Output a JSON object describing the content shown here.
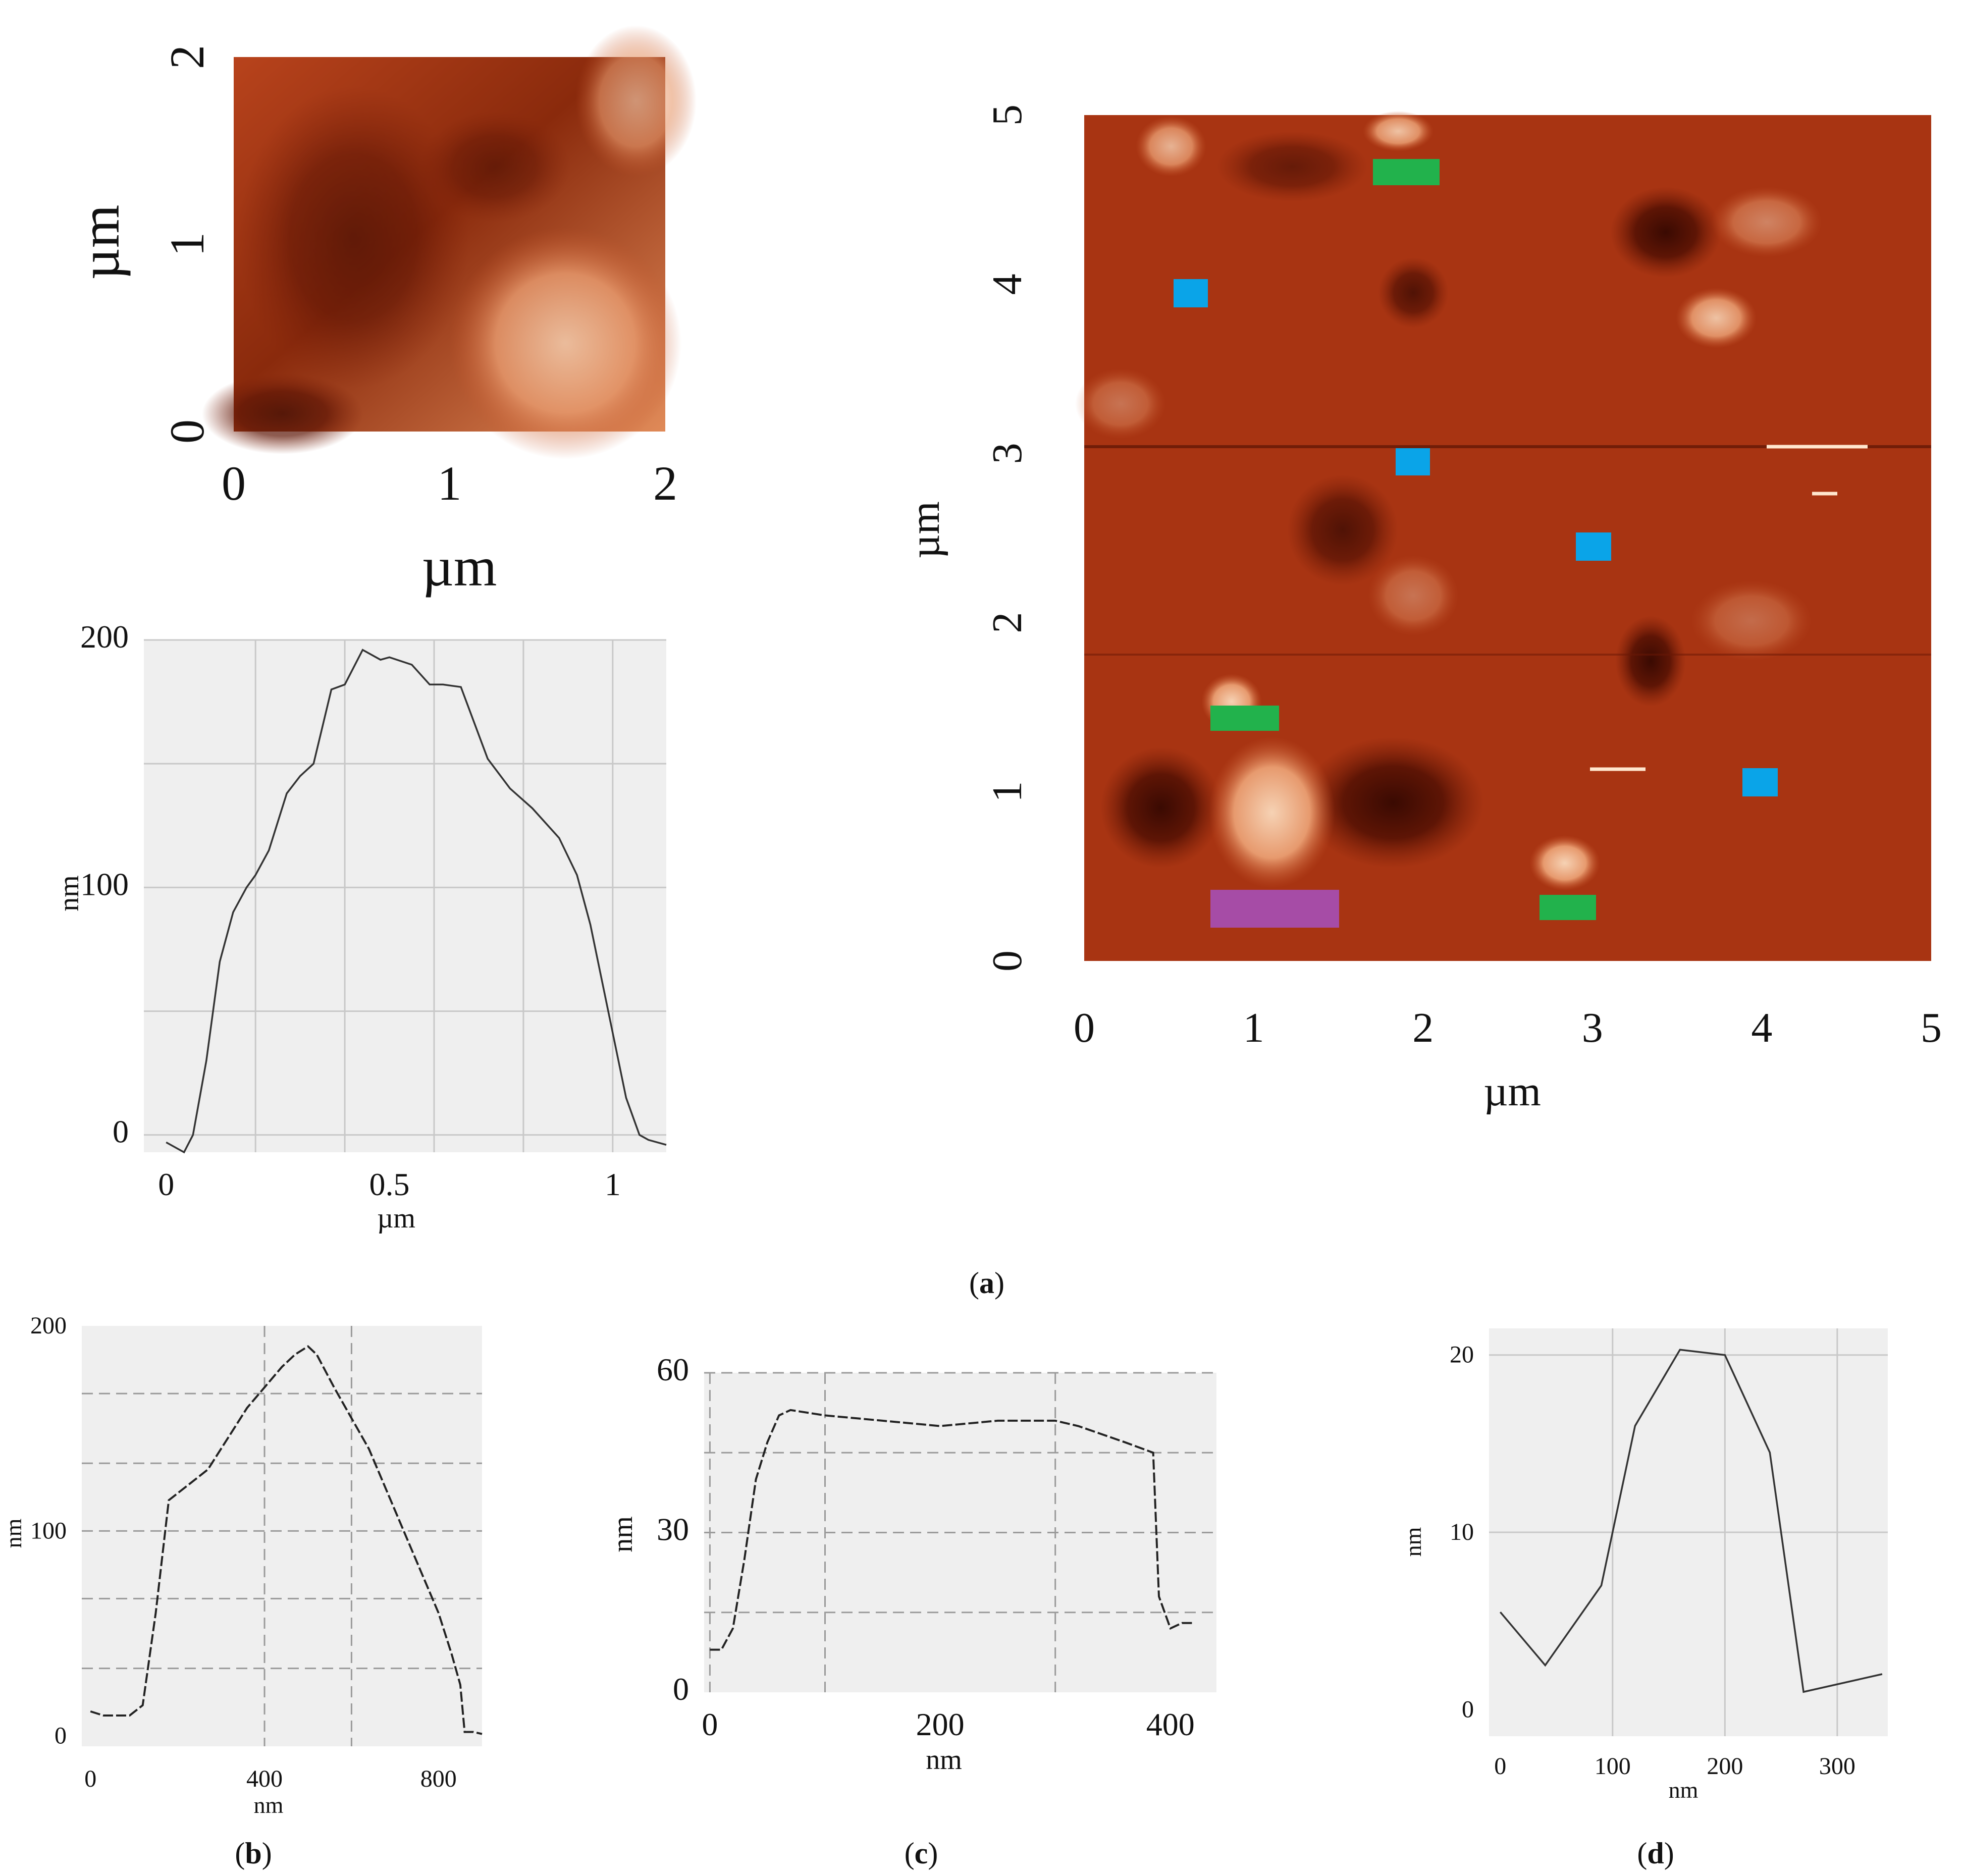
{
  "panel_labels": {
    "a": {
      "open": "(",
      "letter": "a",
      "close": ")"
    },
    "b": {
      "open": "(",
      "letter": "b",
      "close": ")"
    },
    "c": {
      "open": "(",
      "letter": "c",
      "close": ")"
    },
    "d": {
      "open": "(",
      "letter": "d",
      "close": ")"
    }
  },
  "colors": {
    "afm_dark": "#3a0a02",
    "afm_mid": "#a83412",
    "afm_light": "#f2c7a6",
    "marker_blue": "#0aa4e8",
    "marker_green": "#22b24c",
    "marker_purple": "#a64ca6"
  },
  "chart_data": [
    {
      "id": "afm-small",
      "type": "heatmap",
      "xlabel": "µm",
      "ylabel": "µm",
      "xlim": [
        0,
        2
      ],
      "ylim": [
        0,
        2
      ],
      "x_ticks": [
        "0",
        "1",
        "2"
      ],
      "y_ticks": [
        "0",
        "1",
        "2"
      ]
    },
    {
      "id": "profile-a",
      "type": "line",
      "xlabel": "µm",
      "ylabel": "nm",
      "xlim": [
        -0.05,
        1.12
      ],
      "ylim": [
        -7,
        200
      ],
      "x_ticks": [
        "0",
        "0.5",
        "1"
      ],
      "y_ticks": [
        "0",
        "100",
        "200"
      ],
      "x": [
        0.0,
        0.04,
        0.06,
        0.09,
        0.12,
        0.15,
        0.18,
        0.2,
        0.23,
        0.27,
        0.3,
        0.33,
        0.37,
        0.4,
        0.44,
        0.48,
        0.5,
        0.55,
        0.59,
        0.62,
        0.66,
        0.72,
        0.77,
        0.82,
        0.88,
        0.92,
        0.95,
        0.99,
        1.03,
        1.06,
        1.08,
        1.12
      ],
      "y": [
        -3,
        -7,
        0,
        30,
        70,
        90,
        100,
        105,
        115,
        138,
        145,
        150,
        180,
        182,
        196,
        192,
        193,
        190,
        182,
        182,
        181,
        152,
        140,
        132,
        120,
        105,
        85,
        50,
        15,
        0,
        -2,
        -4
      ]
    },
    {
      "id": "afm-large",
      "type": "heatmap",
      "xlabel": "µm",
      "ylabel": "µm",
      "xlim": [
        0,
        5
      ],
      "ylim": [
        0,
        5
      ],
      "x_ticks": [
        "0",
        "1",
        "2",
        "3",
        "4",
        "5"
      ],
      "y_ticks": [
        "0",
        "1",
        "2",
        "3",
        "4",
        "5"
      ]
    },
    {
      "id": "profile-b",
      "type": "line",
      "xlabel": "nm",
      "ylabel": "nm",
      "xlim": [
        -20,
        900
      ],
      "ylim": [
        -5,
        200
      ],
      "x_ticks": [
        "0",
        "400",
        "800"
      ],
      "y_ticks": [
        "0",
        "100",
        "200"
      ],
      "x": [
        0,
        30,
        60,
        90,
        120,
        150,
        180,
        210,
        240,
        270,
        300,
        330,
        360,
        400,
        440,
        470,
        500,
        520,
        560,
        600,
        640,
        680,
        720,
        760,
        800,
        830,
        850,
        860,
        880,
        900
      ],
      "y": [
        12,
        10,
        10,
        10,
        15,
        60,
        115,
        120,
        125,
        130,
        140,
        150,
        160,
        170,
        180,
        186,
        190,
        186,
        170,
        155,
        140,
        120,
        100,
        80,
        60,
        40,
        25,
        2,
        2,
        1
      ]
    },
    {
      "id": "profile-c",
      "type": "line",
      "xlabel": "nm",
      "ylabel": "nm",
      "xlim": [
        -5,
        440
      ],
      "ylim": [
        0,
        60
      ],
      "x_ticks": [
        "0",
        "200",
        "400"
      ],
      "y_ticks": [
        "0",
        "30",
        "60"
      ],
      "x": [
        0,
        10,
        20,
        30,
        40,
        50,
        60,
        70,
        100,
        150,
        200,
        250,
        300,
        320,
        360,
        385,
        390,
        400,
        410,
        420
      ],
      "y": [
        8,
        8,
        12,
        25,
        40,
        47,
        52,
        53,
        52,
        51,
        50,
        51,
        51,
        50,
        47,
        45,
        18,
        12,
        13,
        13
      ]
    },
    {
      "id": "profile-d",
      "type": "line",
      "xlabel": "nm",
      "ylabel": "nm",
      "xlim": [
        -10,
        345
      ],
      "ylim": [
        -1.5,
        21.5
      ],
      "x_ticks": [
        "0",
        "100",
        "200",
        "300"
      ],
      "y_ticks": [
        "0",
        "10",
        "20"
      ],
      "x": [
        0,
        40,
        90,
        120,
        160,
        200,
        240,
        270,
        340
      ],
      "y": [
        5.5,
        2.5,
        7,
        16,
        20.3,
        20,
        14.5,
        1,
        2
      ]
    }
  ]
}
